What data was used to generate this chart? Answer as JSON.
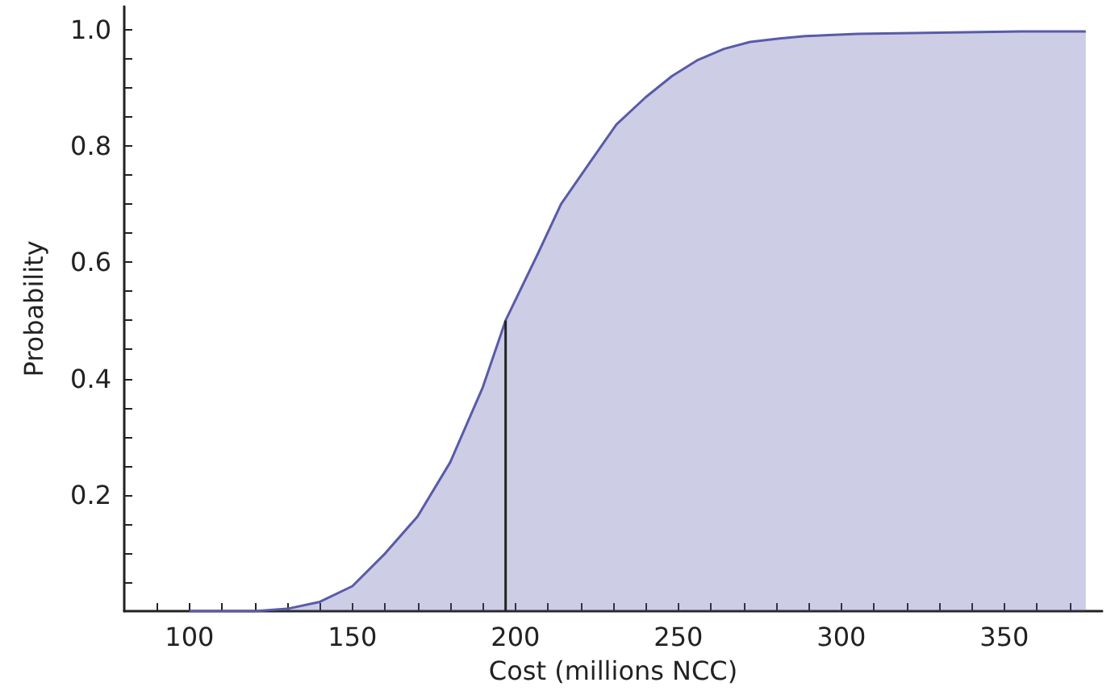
{
  "chart_data": {
    "type": "area",
    "xlabel": "Cost (millions NCC)",
    "ylabel": "Probability",
    "xlim": [
      80,
      380
    ],
    "xticks": [
      {
        "value": 90,
        "label": null
      },
      100,
      {
        "value": 110,
        "label": null
      },
      {
        "value": 120,
        "label": null
      },
      {
        "value": 130,
        "label": null
      },
      {
        "value": 140,
        "label": null
      },
      150,
      {
        "value": 160,
        "label": null
      },
      {
        "value": 170,
        "label": null
      },
      {
        "value": 180,
        "label": null
      },
      {
        "value": 190,
        "label": null
      },
      200,
      {
        "value": 210,
        "label": null
      },
      {
        "value": 220,
        "label": null
      },
      {
        "value": 230,
        "label": null
      },
      {
        "value": 240,
        "label": null
      },
      250,
      {
        "value": 260,
        "label": null
      },
      {
        "value": 270,
        "label": null
      },
      {
        "value": 280,
        "label": null
      },
      {
        "value": 290,
        "label": null
      },
      300,
      {
        "value": 310,
        "label": null
      },
      {
        "value": 320,
        "label": null
      },
      {
        "value": 330,
        "label": null
      },
      {
        "value": 340,
        "label": null
      },
      350,
      {
        "value": 360,
        "label": null
      },
      {
        "value": 370,
        "label": null
      }
    ],
    "ylim": [
      0,
      1.04
    ],
    "yticks": [
      {
        "value": 0.05,
        "label": null
      },
      {
        "value": 0.1,
        "label": null
      },
      {
        "value": 0.15,
        "label": null
      },
      {
        "value": 0.2,
        "label": "0.2"
      },
      {
        "value": 0.25,
        "label": null
      },
      {
        "value": 0.3,
        "label": null
      },
      {
        "value": 0.35,
        "label": null
      },
      {
        "value": 0.4,
        "label": "0.4"
      },
      {
        "value": 0.45,
        "label": null
      },
      {
        "value": 0.5,
        "label": null
      },
      {
        "value": 0.55,
        "label": null
      },
      {
        "value": 0.6,
        "label": "0.6"
      },
      {
        "value": 0.65,
        "label": null
      },
      {
        "value": 0.7,
        "label": null
      },
      {
        "value": 0.75,
        "label": null
      },
      {
        "value": 0.8,
        "label": "0.8"
      },
      {
        "value": 0.85,
        "label": null
      },
      {
        "value": 0.9,
        "label": null
      },
      {
        "value": 0.95,
        "label": null
      },
      {
        "value": 1.0,
        "label": "1.0"
      }
    ],
    "grid": false,
    "marker": "none",
    "series": [
      {
        "color": "#5a5aaa",
        "x": [
          100,
          120,
          130,
          140,
          150,
          160,
          170,
          180,
          190,
          197,
          207,
          214,
          223,
          231,
          240,
          248,
          256,
          264,
          272,
          281,
          289,
          305,
          330,
          355,
          375
        ],
        "values": [
          0,
          0,
          0.004,
          0.016,
          0.043,
          0.099,
          0.163,
          0.256,
          0.385,
          0.5,
          0.616,
          0.7,
          0.773,
          0.837,
          0.884,
          0.92,
          0.948,
          0.967,
          0.979,
          0.985,
          0.989,
          0.993,
          0.995,
          0.997,
          0.997
        ]
      },
      {
        "type": "line",
        "color": "#222222",
        "x": [
          197,
          197
        ],
        "values": [
          0,
          0.5
        ]
      }
    ]
  }
}
